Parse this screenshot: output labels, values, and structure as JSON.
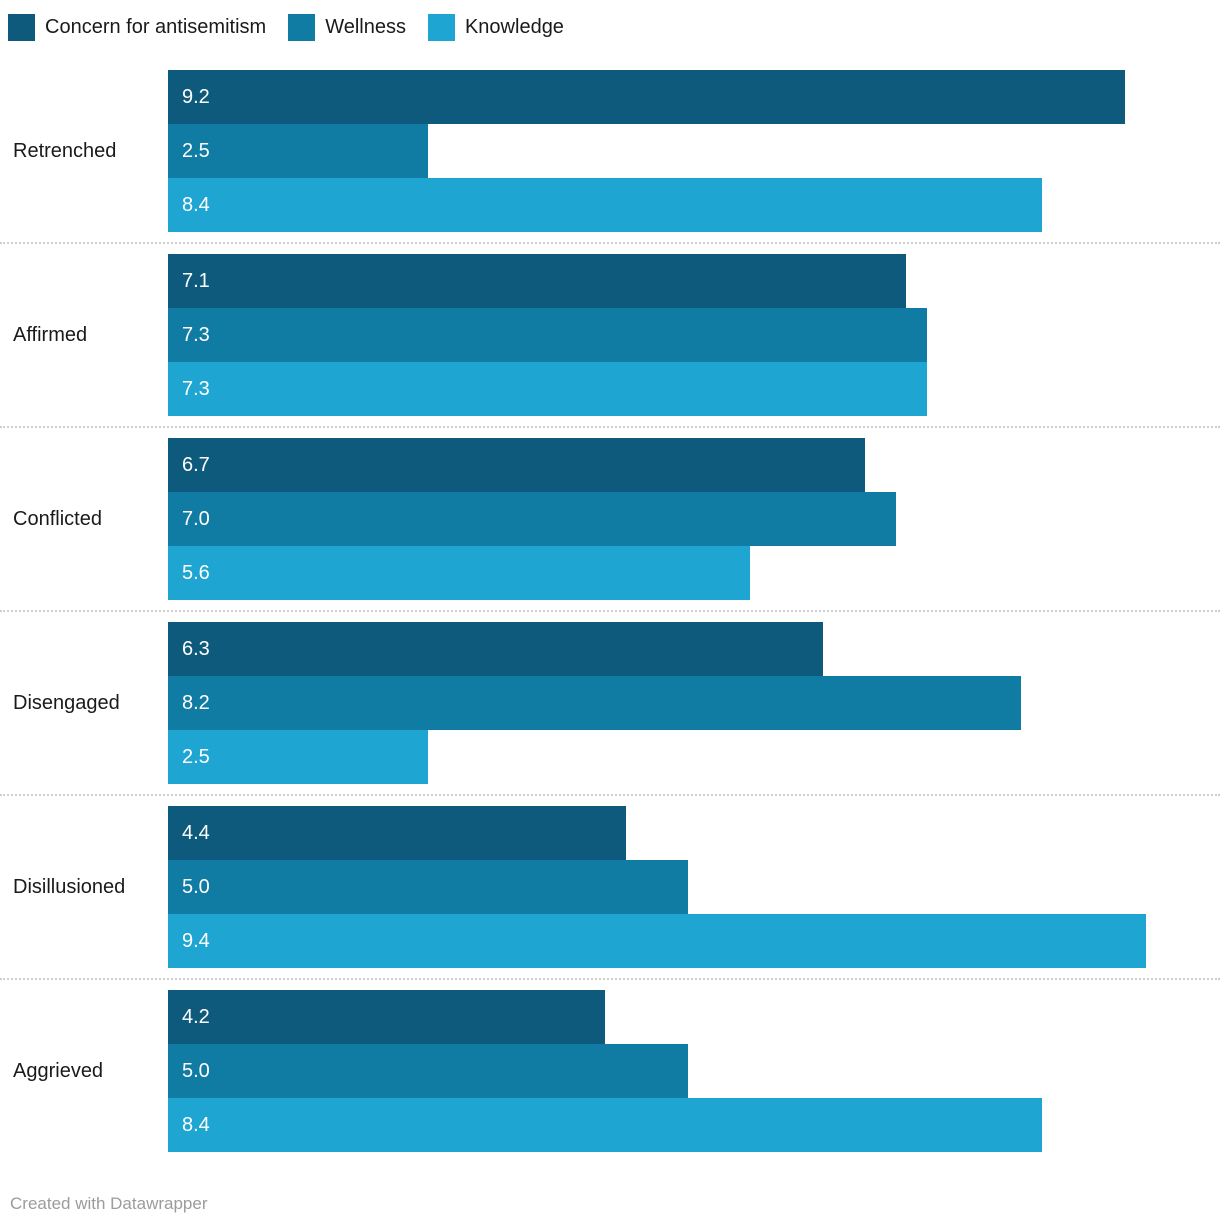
{
  "legend": {
    "position": "top",
    "items": [
      {
        "id": "concern",
        "label": "Concern for antisemitism",
        "color": "#0e5a7d"
      },
      {
        "id": "wellness",
        "label": "Wellness",
        "color": "#107ba3"
      },
      {
        "id": "knowledge",
        "label": "Knowledge",
        "color": "#1fa5d2"
      }
    ]
  },
  "chart_data": {
    "type": "bar",
    "orientation": "horizontal",
    "title": "",
    "xlabel": "",
    "ylabel": "",
    "xlim": [
      0,
      10
    ],
    "grid": "dotted-row-separators",
    "legend_position": "top",
    "value_labels": "inside-start, one decimal, white",
    "categories": [
      "Retrenched",
      "Affirmed",
      "Conflicted",
      "Disengaged",
      "Disillusioned",
      "Aggrieved"
    ],
    "series": [
      {
        "name": "Concern for antisemitism",
        "color": "#0e5a7d",
        "values": [
          9.2,
          7.1,
          6.7,
          6.3,
          4.4,
          4.2
        ]
      },
      {
        "name": "Wellness",
        "color": "#107ba3",
        "values": [
          2.5,
          7.3,
          7.0,
          8.2,
          5.0,
          5.0
        ]
      },
      {
        "name": "Knowledge",
        "color": "#1fa5d2",
        "values": [
          8.4,
          7.3,
          5.6,
          2.5,
          9.4,
          8.4
        ]
      }
    ]
  },
  "footer": {
    "credit": "Created with Datawrapper"
  }
}
